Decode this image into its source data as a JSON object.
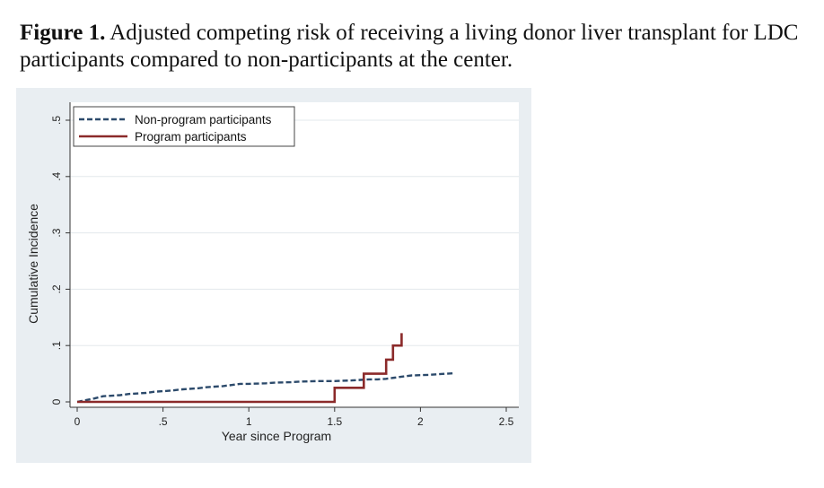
{
  "caption": {
    "label": "Figure 1.",
    "text": "Adjusted competing risk of receiving a living donor liver transplant for LDC participants compared to non-participants at the center."
  },
  "colors": {
    "outer_bg": "#e9eef2",
    "plot_bg": "#ffffff",
    "grid": "#e3e8ec",
    "non_program": "#2c4a6b",
    "program": "#8b2a2a"
  },
  "chart_data": {
    "type": "line",
    "xlabel": "Year since Program",
    "ylabel": "Cumulative Incidence",
    "xlim": [
      0,
      2.5
    ],
    "ylim": [
      0,
      0.5
    ],
    "xticks": [
      0,
      0.5,
      1,
      1.5,
      2,
      2.5
    ],
    "xtick_labels": [
      "0",
      ".5",
      "1",
      "1.5",
      "2",
      "2.5"
    ],
    "yticks": [
      0,
      0.1,
      0.2,
      0.3,
      0.4,
      0.5
    ],
    "ytick_labels": [
      "0",
      ".1",
      ".2",
      ".3",
      ".4",
      ".5"
    ],
    "grid": true,
    "legend_position": "top-left",
    "series": [
      {
        "name": "Non-program participants",
        "style": "dashed",
        "x": [
          0,
          0.05,
          0.1,
          0.15,
          0.25,
          0.3,
          0.4,
          0.45,
          0.55,
          0.6,
          0.7,
          0.75,
          0.85,
          0.9,
          0.95,
          1.0,
          1.1,
          1.15,
          1.25,
          1.3,
          1.4,
          1.5,
          1.6,
          1.65,
          1.7,
          1.75,
          1.8,
          1.85,
          1.9,
          1.95,
          2.05,
          2.1,
          2.15,
          2.2
        ],
        "y": [
          0,
          0.003,
          0.006,
          0.01,
          0.012,
          0.014,
          0.016,
          0.018,
          0.02,
          0.022,
          0.024,
          0.026,
          0.028,
          0.03,
          0.032,
          0.032,
          0.033,
          0.034,
          0.035,
          0.036,
          0.037,
          0.037,
          0.038,
          0.039,
          0.04,
          0.04,
          0.041,
          0.043,
          0.045,
          0.047,
          0.048,
          0.049,
          0.05,
          0.051
        ]
      },
      {
        "name": "Program participants",
        "style": "solid",
        "x": [
          0,
          1.5,
          1.5,
          1.67,
          1.67,
          1.8,
          1.8,
          1.84,
          1.84,
          1.89,
          1.89
        ],
        "y": [
          0,
          0,
          0.025,
          0.025,
          0.05,
          0.05,
          0.075,
          0.075,
          0.1,
          0.1,
          0.122
        ]
      }
    ]
  }
}
